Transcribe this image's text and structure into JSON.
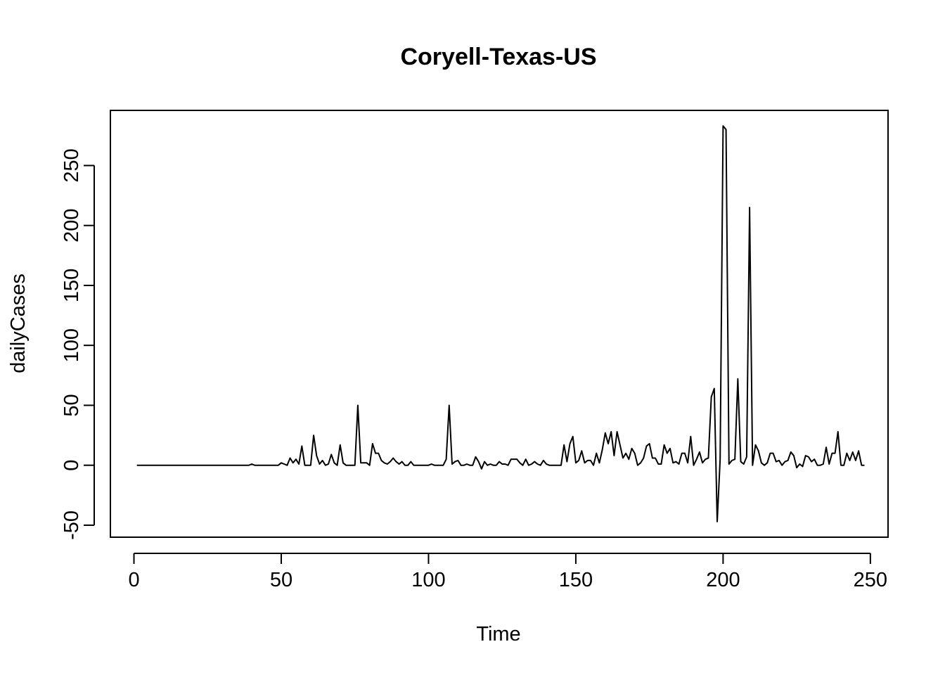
{
  "chart_data": {
    "type": "line",
    "title": "Coryell-Texas-US",
    "xlabel": "Time",
    "ylabel": "dailyCases",
    "xlim": [
      -8,
      256
    ],
    "ylim": [
      -60,
      296
    ],
    "xticks": [
      0,
      50,
      100,
      150,
      200,
      250
    ],
    "yticks": [
      -50,
      0,
      50,
      100,
      150,
      200,
      250
    ],
    "grid": false,
    "legend": "none",
    "line_color": "#000000",
    "series": [
      {
        "x": [
          1,
          2,
          3,
          4,
          5,
          6,
          7,
          8,
          9,
          10,
          11,
          12,
          13,
          14,
          15,
          16,
          17,
          18,
          19,
          20,
          21,
          22,
          23,
          24,
          25,
          26,
          27,
          28,
          29,
          30,
          31,
          32,
          33,
          34,
          35,
          36,
          37,
          38,
          39,
          40,
          41,
          42,
          43,
          44,
          45,
          46,
          47,
          48,
          49,
          50,
          51,
          52,
          53,
          54,
          55,
          56,
          57,
          58,
          59,
          60,
          61,
          62,
          63,
          64,
          65,
          66,
          67,
          68,
          69,
          70,
          71,
          72,
          73,
          74,
          75,
          76,
          77,
          78,
          79,
          80,
          81,
          82,
          83,
          84,
          85,
          86,
          87,
          88,
          89,
          90,
          91,
          92,
          93,
          94,
          95,
          96,
          97,
          98,
          99,
          100,
          101,
          102,
          103,
          104,
          105,
          106,
          107,
          108,
          109,
          110,
          111,
          112,
          113,
          114,
          115,
          116,
          117,
          118,
          119,
          120,
          121,
          122,
          123,
          124,
          125,
          126,
          127,
          128,
          129,
          130,
          131,
          132,
          133,
          134,
          135,
          136,
          137,
          138,
          139,
          140,
          141,
          142,
          143,
          144,
          145,
          146,
          147,
          148,
          149,
          150,
          151,
          152,
          153,
          154,
          155,
          156,
          157,
          158,
          159,
          160,
          161,
          162,
          163,
          164,
          165,
          166,
          167,
          168,
          169,
          170,
          171,
          172,
          173,
          174,
          175,
          176,
          177,
          178,
          179,
          180,
          181,
          182,
          183,
          184,
          185,
          186,
          187,
          188,
          189,
          190,
          191,
          192,
          193,
          194,
          195,
          196,
          197,
          198,
          199,
          200,
          201,
          202,
          203,
          204,
          205,
          206,
          207,
          208,
          209,
          210,
          211,
          212,
          213,
          214,
          215,
          216,
          217,
          218,
          219,
          220,
          221,
          222,
          223,
          224,
          225,
          226,
          227,
          228,
          229,
          230,
          231,
          232,
          233,
          234,
          235,
          236,
          237,
          238,
          239,
          240,
          241,
          242,
          243,
          244,
          245,
          246,
          247,
          248
        ],
        "values": [
          0,
          0,
          0,
          0,
          0,
          0,
          0,
          0,
          0,
          0,
          0,
          0,
          0,
          0,
          0,
          0,
          0,
          0,
          0,
          0,
          0,
          0,
          0,
          0,
          0,
          0,
          0,
          0,
          0,
          0,
          0,
          0,
          0,
          0,
          0,
          0,
          0,
          0,
          0,
          1,
          0,
          0,
          0,
          0,
          0,
          0,
          0,
          0,
          0,
          2,
          1,
          0,
          6,
          2,
          5,
          1,
          16,
          0,
          0,
          0,
          25,
          8,
          1,
          4,
          0,
          1,
          9,
          2,
          0,
          17,
          2,
          0,
          0,
          0,
          0,
          50,
          2,
          2,
          2,
          0,
          18,
          10,
          10,
          4,
          2,
          1,
          3,
          6,
          3,
          1,
          3,
          0,
          0,
          3,
          0,
          0,
          0,
          0,
          0,
          0,
          1,
          0,
          0,
          0,
          0,
          5,
          50,
          1,
          3,
          4,
          0,
          0,
          1,
          0,
          0,
          7,
          3,
          -3,
          3,
          0,
          1,
          0,
          0,
          3,
          1,
          1,
          0,
          5,
          5,
          5,
          2,
          0,
          5,
          0,
          1,
          3,
          1,
          0,
          4,
          1,
          0,
          0,
          0,
          0,
          0,
          17,
          3,
          18,
          24,
          2,
          4,
          12,
          2,
          4,
          4,
          0,
          10,
          2,
          13,
          27,
          18,
          28,
          8,
          28,
          17,
          6,
          10,
          5,
          14,
          10,
          0,
          2,
          6,
          16,
          18,
          6,
          6,
          1,
          1,
          17,
          10,
          14,
          2,
          3,
          1,
          10,
          10,
          2,
          24,
          0,
          5,
          11,
          2,
          5,
          6,
          57,
          64,
          -47,
          5,
          283,
          280,
          1,
          4,
          5,
          72,
          3,
          1,
          7,
          215,
          0,
          17,
          12,
          2,
          0,
          2,
          10,
          10,
          3,
          4,
          0,
          3,
          4,
          11,
          8,
          -2,
          1,
          -1,
          8,
          7,
          3,
          5,
          0,
          0,
          1,
          15,
          1,
          10,
          10,
          28,
          0,
          0,
          10,
          4,
          11,
          4,
          12,
          0,
          0
        ]
      }
    ]
  }
}
